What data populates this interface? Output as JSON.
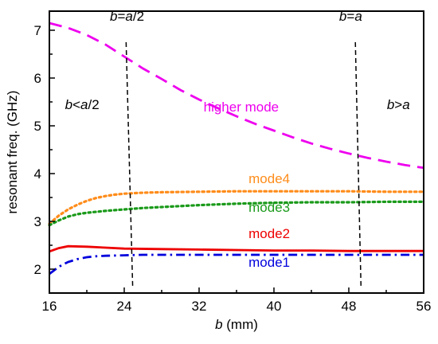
{
  "chart_data": {
    "type": "line",
    "title": "",
    "xlabel": {
      "italic": "b",
      "rest": " (mm)"
    },
    "ylabel": "resonant freq. (GHz)",
    "xlim": [
      16,
      56
    ],
    "ylim": [
      1.5,
      7.4
    ],
    "xticks": [
      16,
      24,
      32,
      40,
      48,
      56
    ],
    "yticks": [
      2,
      3,
      4,
      5,
      6,
      7
    ],
    "grid": false,
    "legend": "none",
    "series": [
      {
        "name": "higher mode",
        "color": "#ee00ee",
        "dash": "dashed",
        "x": [
          16,
          18,
          20,
          22,
          24,
          26,
          28,
          30,
          32,
          34,
          36,
          38,
          40,
          42,
          44,
          46,
          48,
          50,
          52,
          54,
          56
        ],
        "y": [
          7.15,
          7.05,
          6.9,
          6.7,
          6.45,
          6.2,
          5.98,
          5.75,
          5.55,
          5.37,
          5.2,
          5.04,
          4.9,
          4.76,
          4.63,
          4.52,
          4.42,
          4.33,
          4.25,
          4.18,
          4.12
        ]
      },
      {
        "name": "mode4",
        "color": "#ff8c1a",
        "dash": "dotted",
        "x": [
          16,
          17,
          18,
          19,
          20,
          21,
          22,
          23,
          24,
          26,
          28,
          32,
          36,
          40,
          44,
          48,
          52,
          56
        ],
        "y": [
          2.95,
          3.12,
          3.25,
          3.35,
          3.43,
          3.49,
          3.53,
          3.56,
          3.58,
          3.6,
          3.61,
          3.62,
          3.63,
          3.63,
          3.63,
          3.63,
          3.62,
          3.62
        ]
      },
      {
        "name": "mode3",
        "color": "#1a9a1a",
        "dash": "dotted",
        "x": [
          16,
          17,
          18,
          19,
          20,
          21,
          22,
          24,
          26,
          28,
          32,
          36,
          40,
          44,
          48,
          52,
          56
        ],
        "y": [
          2.92,
          3.02,
          3.1,
          3.15,
          3.18,
          3.2,
          3.22,
          3.25,
          3.28,
          3.3,
          3.34,
          3.37,
          3.39,
          3.4,
          3.4,
          3.41,
          3.41
        ]
      },
      {
        "name": "mode2",
        "color": "#ee0000",
        "dash": "solid",
        "x": [
          16,
          17,
          18,
          20,
          22,
          24,
          28,
          32,
          36,
          40,
          44,
          48,
          52,
          56
        ],
        "y": [
          2.37,
          2.44,
          2.48,
          2.47,
          2.45,
          2.43,
          2.42,
          2.41,
          2.4,
          2.39,
          2.39,
          2.38,
          2.38,
          2.38
        ]
      },
      {
        "name": "mode1",
        "color": "#0000dd",
        "dash": "dashdot",
        "x": [
          16,
          17,
          18,
          19,
          20,
          21,
          22,
          24,
          26,
          28,
          32,
          36,
          40,
          44,
          48,
          52,
          56
        ],
        "y": [
          1.9,
          2.05,
          2.15,
          2.21,
          2.25,
          2.27,
          2.28,
          2.29,
          2.3,
          2.3,
          2.3,
          2.3,
          2.3,
          2.3,
          2.3,
          2.3,
          2.3
        ]
      }
    ],
    "annotations": [
      {
        "text": "higher mode",
        "color": "#ee00ee",
        "x": 36.5,
        "y": 5.3
      },
      {
        "text": "mode4",
        "color": "#ff8c1a",
        "x": 39.5,
        "y": 3.8
      },
      {
        "text": "mode3",
        "color": "#1a9a1a",
        "x": 39.5,
        "y": 3.2
      },
      {
        "text": "mode2",
        "color": "#ee0000",
        "x": 39.5,
        "y": 2.65
      },
      {
        "text": "mode1",
        "color": "#0000dd",
        "x": 39.5,
        "y": 2.05
      },
      {
        "text": "b<a/2",
        "color": "#000000",
        "x": 19.5,
        "y": 5.35
      },
      {
        "text": "b>a",
        "color": "#000000",
        "x": 53.3,
        "y": 5.35
      },
      {
        "text": "b=a/2",
        "color": "#000000",
        "x": 24.3,
        "y": 7.2
      },
      {
        "text": "b=a",
        "color": "#000000",
        "x": 48.2,
        "y": 7.2
      }
    ],
    "reference_lines": [
      {
        "x_top": 24.2,
        "x_bottom": 24.9,
        "y_top": 6.75,
        "y_bottom": 1.65
      },
      {
        "x_top": 48.7,
        "x_bottom": 49.3,
        "y_top": 6.75,
        "y_bottom": 1.65
      }
    ]
  }
}
